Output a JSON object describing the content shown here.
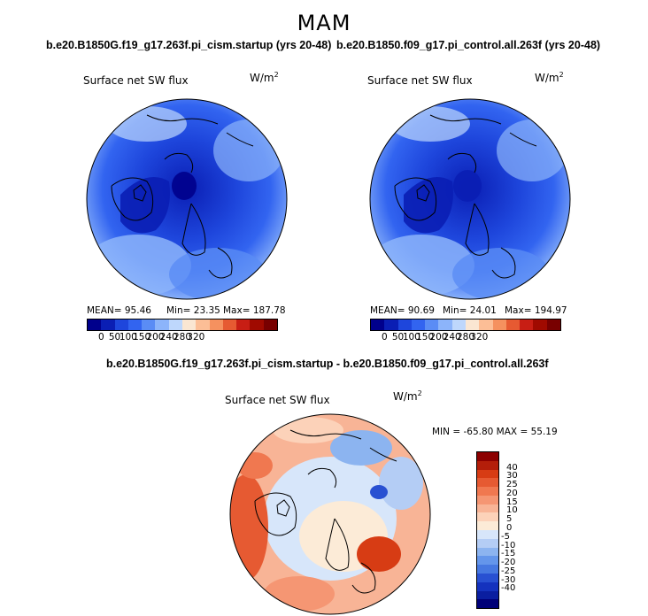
{
  "season": "MAM",
  "panels": [
    {
      "case": "b.e20.B1850G.f19_g17.263f.pi_cism.startup (yrs 20-48)",
      "title": "Surface net SW flux",
      "units": "W/m",
      "units_sup": "2",
      "mean_label": "MEAN=",
      "mean": "95.46",
      "min_label": "Min=",
      "min": "23.35",
      "max_label": "Max=",
      "max": "187.78"
    },
    {
      "case": "b.e20.B1850.f09_g17.pi_control.all.263f (yrs 20-48)",
      "title": "Surface net SW flux",
      "units": "W/m",
      "units_sup": "2",
      "mean_label": "MEAN=",
      "mean": "90.69",
      "min_label": "Min=",
      "min": "24.01",
      "max_label": "Max=",
      "max": "194.97"
    }
  ],
  "abs_colorbar": {
    "colors": [
      "#00008c",
      "#0a1eb4",
      "#1e46dc",
      "#3264f0",
      "#5a8cf5",
      "#8cb4fa",
      "#bed7fc",
      "#fae6d2",
      "#fcbe96",
      "#f5915f",
      "#e65a32",
      "#c81e14",
      "#a00a00",
      "#780000"
    ],
    "ticks": [
      "0",
      "50",
      "100",
      "150",
      "200",
      "240",
      "280",
      "320"
    ]
  },
  "diff": {
    "case": "b.e20.B1850G.f19_g17.263f.pi_cism.startup - b.e20.B1850.f09_g17.pi_control.all.263f",
    "title": "Surface net SW flux",
    "units": "W/m",
    "units_sup": "2",
    "minmax": "MIN = -65.80 MAX =  55.19",
    "colorbar": {
      "colors": [
        "#8c0000",
        "#b41e0a",
        "#d73c14",
        "#e65a32",
        "#f07850",
        "#f59673",
        "#f8b496",
        "#fcd2b9",
        "#fcebd7",
        "#d7e6fa",
        "#b4cdf5",
        "#8cb4f0",
        "#6496eb",
        "#4678e1",
        "#2850d2",
        "#1432be",
        "#0a1ea0",
        "#000078"
      ],
      "ticks": [
        "40",
        "30",
        "25",
        "20",
        "15",
        "10",
        "5",
        "0",
        "-5",
        "-10",
        "-15",
        "-20",
        "-25",
        "-30",
        "-40"
      ]
    }
  }
}
